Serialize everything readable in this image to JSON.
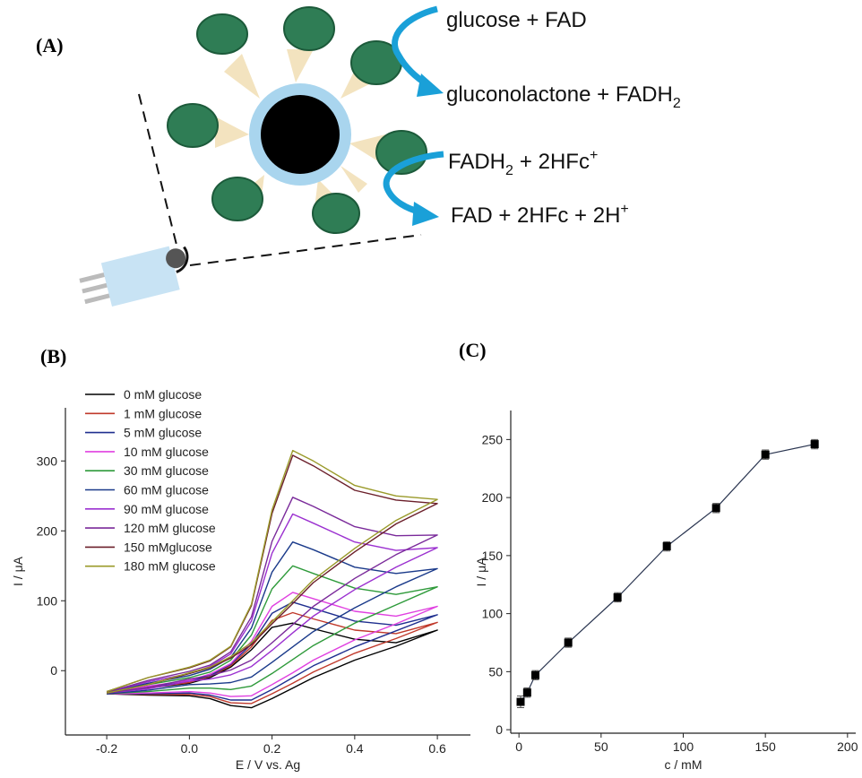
{
  "panel_a": {
    "label": "(A)",
    "reactions": [
      [
        "glucose + FAD"
      ],
      [
        "gluconolactone + FADH",
        "2"
      ],
      [
        "FADH",
        "2",
        "+ 2HFc",
        "+"
      ],
      [
        "FAD + 2HFc + 2H",
        "+"
      ]
    ]
  },
  "chart_data": [
    {
      "type": "line",
      "panel_label": "(B)",
      "xlabel": "E / V vs. Ag",
      "ylabel": "I / μA",
      "xlim": [
        -0.3,
        0.68
      ],
      "ylim": [
        -92,
        376
      ],
      "xticks": [
        -0.2,
        {
          "value": 0,
          "label": "0.0"
        },
        0.2,
        0.4,
        0.6
      ],
      "yticks": [
        0,
        100,
        200,
        300
      ],
      "legend": "upper left",
      "x": [
        -0.2,
        -0.1,
        0,
        0.05,
        0.1,
        0.15,
        0.2,
        0.25,
        0.3,
        0.4,
        0.5,
        0.6,
        0.5,
        0.4,
        0.3,
        0.25,
        0.2,
        0.15,
        0.1,
        0.05,
        0,
        -0.1,
        -0.2
      ],
      "series": [
        {
          "name": "0 mM glucose",
          "color": "#000000",
          "values": [
            -32,
            -25,
            -18,
            -10,
            5,
            30,
            62,
            68,
            60,
            45,
            40,
            58,
            35,
            15,
            -10,
            -25,
            -40,
            -53,
            -50,
            -40,
            -36,
            -35,
            -33
          ]
        },
        {
          "name": "1 mM glucose",
          "color": "#c0392b",
          "values": [
            -32,
            -24,
            -17,
            -8,
            7,
            34,
            72,
            83,
            74,
            58,
            53,
            69,
            46,
            25,
            -2,
            -18,
            -33,
            -47,
            -46,
            -37,
            -34,
            -34,
            -33
          ]
        },
        {
          "name": "5 mM glucose",
          "color": "#1f2f8f",
          "values": [
            -32,
            -23,
            -15,
            -7,
            9,
            38,
            82,
            98,
            89,
            71,
            65,
            80,
            57,
            34,
            7,
            -10,
            -27,
            -42,
            -42,
            -35,
            -32,
            -33,
            -33
          ]
        },
        {
          "name": "10 mM glucose",
          "color": "#e040e0",
          "values": [
            -32,
            -22,
            -14,
            -5,
            10,
            42,
            92,
            112,
            103,
            85,
            78,
            92,
            67,
            44,
            15,
            -3,
            -20,
            -36,
            -37,
            -32,
            -30,
            -32,
            -33
          ]
        },
        {
          "name": "30 mM glucose",
          "color": "#2e9a3a",
          "values": [
            -31,
            -20,
            -10,
            -2,
            15,
            51,
            117,
            150,
            139,
            118,
            109,
            120,
            94,
            68,
            36,
            16,
            -4,
            -22,
            -27,
            -25,
            -25,
            -30,
            -33
          ]
        },
        {
          "name": "60 mM glucose",
          "color": "#1a3a8a",
          "values": [
            -31,
            -18,
            -7,
            2,
            19,
            61,
            141,
            184,
            173,
            148,
            139,
            146,
            120,
            90,
            56,
            34,
            12,
            -9,
            -17,
            -19,
            -20,
            -28,
            -33
          ]
        },
        {
          "name": "90 mM glucose",
          "color": "#9b30d0",
          "values": [
            -31,
            -16,
            -4,
            6,
            24,
            71,
            168,
            224,
            211,
            184,
            172,
            176,
            148,
            116,
            78,
            54,
            29,
            6,
            -6,
            -12,
            -15,
            -26,
            -32
          ]
        },
        {
          "name": "120 mM glucose",
          "color": "#7a2a9a",
          "values": [
            -31,
            -14,
            -1,
            8,
            27,
            77,
            185,
            248,
            235,
            206,
            193,
            194,
            166,
            132,
            92,
            66,
            40,
            15,
            1,
            -7,
            -12,
            -24,
            -32
          ]
        },
        {
          "name": "150 mMglucose",
          "color": "#6b1f2a",
          "values": [
            -30,
            -10,
            4,
            14,
            34,
            93,
            225,
            308,
            293,
            258,
            244,
            239,
            210,
            170,
            126,
            96,
            67,
            37,
            18,
            4,
            -4,
            -20,
            -32
          ]
        },
        {
          "name": "180 mM glucose",
          "color": "#9a9a2a",
          "values": [
            -30,
            -10,
            5,
            15,
            35,
            95,
            230,
            315,
            300,
            265,
            250,
            245,
            215,
            175,
            130,
            100,
            70,
            40,
            20,
            5,
            -3,
            -20,
            -32
          ]
        }
      ]
    },
    {
      "type": "scatter",
      "panel_label": "(C)",
      "xlabel": "c / mM",
      "ylabel": "I / μA",
      "xlim": [
        -5,
        205
      ],
      "ylim": [
        -3,
        275
      ],
      "xticks": [
        0,
        50,
        100,
        150,
        200
      ],
      "yticks": [
        0,
        50,
        100,
        150,
        200,
        250
      ],
      "color": "#000000",
      "x": [
        1,
        5,
        10,
        30,
        60,
        90,
        120,
        150,
        180
      ],
      "values": [
        24,
        32,
        47,
        75,
        114,
        158,
        191,
        237,
        246
      ],
      "errors": [
        5,
        4,
        4,
        4,
        4,
        4,
        4,
        4,
        4
      ]
    }
  ]
}
